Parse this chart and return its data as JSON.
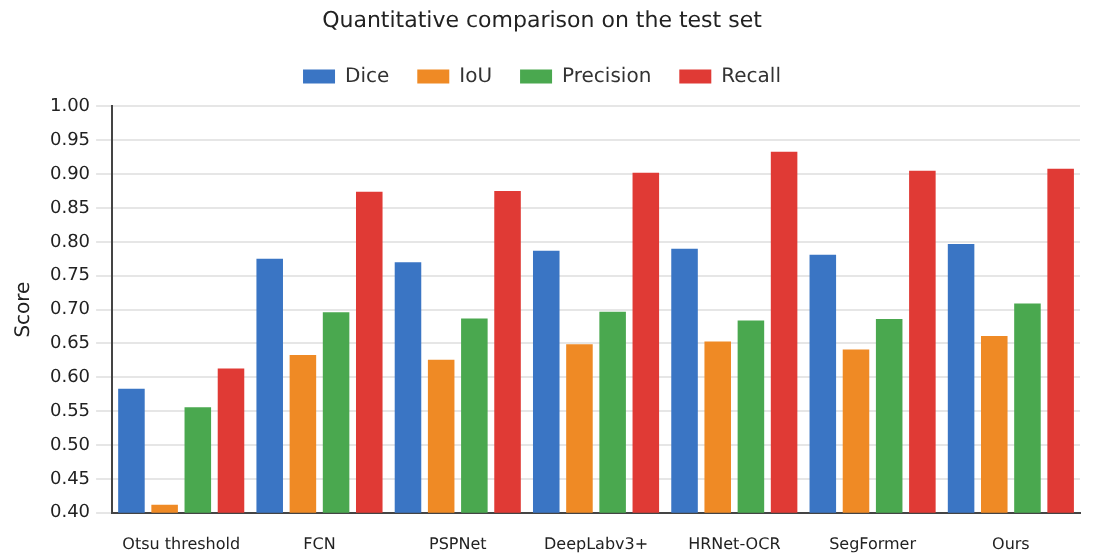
{
  "chart_data": {
    "type": "bar",
    "title": "Quantitative comparison on the test set",
    "ylabel": "Score",
    "categories": [
      "Otsu threshold",
      "FCN",
      "PSPNet",
      "DeepLabv3+",
      "HRNet-OCR",
      "SegFormer",
      "Ours"
    ],
    "series": [
      {
        "name": "Dice",
        "color": "#3a75c4",
        "values": [
          0.583,
          0.775,
          0.77,
          0.787,
          0.79,
          0.781,
          0.797
        ]
      },
      {
        "name": "IoU",
        "color": "#ef8a25",
        "values": [
          0.412,
          0.633,
          0.626,
          0.649,
          0.653,
          0.641,
          0.661
        ]
      },
      {
        "name": "Precision",
        "color": "#4aa84f",
        "values": [
          0.556,
          0.696,
          0.687,
          0.697,
          0.684,
          0.686,
          0.709
        ]
      },
      {
        "name": "Recall",
        "color": "#e03a35",
        "values": [
          0.613,
          0.874,
          0.875,
          0.902,
          0.933,
          0.905,
          0.908
        ]
      }
    ],
    "ylim": [
      0.4,
      1.0
    ],
    "yticks": [
      {
        "value": 0.4,
        "label": "0.40"
      },
      {
        "value": 0.45,
        "label": "0.45"
      },
      {
        "value": 0.5,
        "label": "0.50"
      },
      {
        "value": 0.55,
        "label": "0.55"
      },
      {
        "value": 0.6,
        "label": "0.60"
      },
      {
        "value": 0.65,
        "label": "0.65"
      },
      {
        "value": 0.7,
        "label": "0.70"
      },
      {
        "value": 0.75,
        "label": "0.75"
      },
      {
        "value": 0.8,
        "label": "0.80"
      },
      {
        "value": 0.85,
        "label": "0.85"
      },
      {
        "value": 0.9,
        "label": "0.90"
      },
      {
        "value": 0.95,
        "label": "0.95"
      },
      {
        "value": 1.0,
        "label": "1.00"
      }
    ],
    "grid": "y",
    "legend": "top"
  }
}
